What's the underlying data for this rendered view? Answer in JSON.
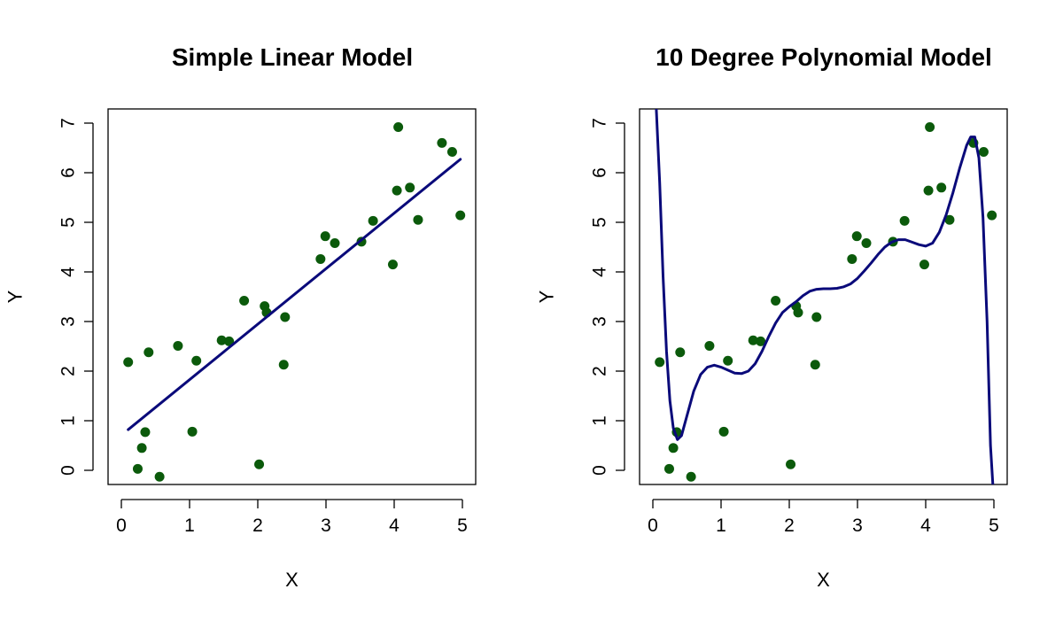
{
  "chart_data": [
    {
      "type": "scatter",
      "title": "Simple Linear Model",
      "xlabel": "X",
      "ylabel": "Y",
      "xlim": [
        0,
        5
      ],
      "ylim": [
        0,
        7
      ],
      "xticks": [
        0,
        1,
        2,
        3,
        4,
        5
      ],
      "yticks": [
        0,
        1,
        2,
        3,
        4,
        5,
        6,
        7
      ],
      "grid": false,
      "point_color": "#0b5a0b",
      "line_color": "#0a0a7a",
      "points": [
        {
          "x": 0.1,
          "y": 2.18
        },
        {
          "x": 0.24,
          "y": 0.03
        },
        {
          "x": 0.3,
          "y": 0.45
        },
        {
          "x": 0.35,
          "y": 0.77
        },
        {
          "x": 0.4,
          "y": 2.38
        },
        {
          "x": 0.56,
          "y": -0.13
        },
        {
          "x": 0.83,
          "y": 2.51
        },
        {
          "x": 1.04,
          "y": 0.78
        },
        {
          "x": 1.1,
          "y": 2.21
        },
        {
          "x": 1.47,
          "y": 2.62
        },
        {
          "x": 1.58,
          "y": 2.6
        },
        {
          "x": 1.8,
          "y": 3.42
        },
        {
          "x": 2.02,
          "y": 0.12
        },
        {
          "x": 2.1,
          "y": 3.31
        },
        {
          "x": 2.13,
          "y": 3.18
        },
        {
          "x": 2.38,
          "y": 2.13
        },
        {
          "x": 2.4,
          "y": 3.09
        },
        {
          "x": 2.92,
          "y": 4.26
        },
        {
          "x": 2.99,
          "y": 4.72
        },
        {
          "x": 3.13,
          "y": 4.58
        },
        {
          "x": 3.52,
          "y": 4.61
        },
        {
          "x": 3.69,
          "y": 5.03
        },
        {
          "x": 3.98,
          "y": 4.15
        },
        {
          "x": 4.04,
          "y": 5.64
        },
        {
          "x": 4.06,
          "y": 6.92
        },
        {
          "x": 4.23,
          "y": 5.7
        },
        {
          "x": 4.35,
          "y": 5.05
        },
        {
          "x": 4.7,
          "y": 6.6
        },
        {
          "x": 4.85,
          "y": 6.42
        },
        {
          "x": 4.97,
          "y": 5.14
        }
      ],
      "fit_line": [
        {
          "x": 0.1,
          "y": 0.82
        },
        {
          "x": 4.97,
          "y": 6.27
        }
      ]
    },
    {
      "type": "scatter",
      "title": "10 Degree Polynomial Model",
      "xlabel": "X",
      "ylabel": "Y",
      "xlim": [
        0,
        5
      ],
      "ylim": [
        0,
        7
      ],
      "xticks": [
        0,
        1,
        2,
        3,
        4,
        5
      ],
      "yticks": [
        0,
        1,
        2,
        3,
        4,
        5,
        6,
        7
      ],
      "grid": false,
      "point_color": "#0b5a0b",
      "line_color": "#0a0a7a",
      "points": [
        {
          "x": 0.1,
          "y": 2.18
        },
        {
          "x": 0.24,
          "y": 0.03
        },
        {
          "x": 0.3,
          "y": 0.45
        },
        {
          "x": 0.35,
          "y": 0.77
        },
        {
          "x": 0.4,
          "y": 2.38
        },
        {
          "x": 0.56,
          "y": -0.13
        },
        {
          "x": 0.83,
          "y": 2.51
        },
        {
          "x": 1.04,
          "y": 0.78
        },
        {
          "x": 1.1,
          "y": 2.21
        },
        {
          "x": 1.47,
          "y": 2.62
        },
        {
          "x": 1.58,
          "y": 2.6
        },
        {
          "x": 1.8,
          "y": 3.42
        },
        {
          "x": 2.02,
          "y": 0.12
        },
        {
          "x": 2.1,
          "y": 3.31
        },
        {
          "x": 2.13,
          "y": 3.18
        },
        {
          "x": 2.38,
          "y": 2.13
        },
        {
          "x": 2.4,
          "y": 3.09
        },
        {
          "x": 2.92,
          "y": 4.26
        },
        {
          "x": 2.99,
          "y": 4.72
        },
        {
          "x": 3.13,
          "y": 4.58
        },
        {
          "x": 3.52,
          "y": 4.61
        },
        {
          "x": 3.69,
          "y": 5.03
        },
        {
          "x": 3.98,
          "y": 4.15
        },
        {
          "x": 4.04,
          "y": 5.64
        },
        {
          "x": 4.06,
          "y": 6.92
        },
        {
          "x": 4.23,
          "y": 5.7
        },
        {
          "x": 4.35,
          "y": 5.05
        },
        {
          "x": 4.7,
          "y": 6.6
        },
        {
          "x": 4.85,
          "y": 6.42
        },
        {
          "x": 4.97,
          "y": 5.14
        }
      ],
      "fit_curve": [
        {
          "x": 0.05,
          "y": 7.3
        },
        {
          "x": 0.1,
          "y": 5.8
        },
        {
          "x": 0.15,
          "y": 3.9
        },
        {
          "x": 0.2,
          "y": 2.4
        },
        {
          "x": 0.25,
          "y": 1.4
        },
        {
          "x": 0.3,
          "y": 0.85
        },
        {
          "x": 0.36,
          "y": 0.62
        },
        {
          "x": 0.42,
          "y": 0.7
        },
        {
          "x": 0.5,
          "y": 1.1
        },
        {
          "x": 0.6,
          "y": 1.6
        },
        {
          "x": 0.7,
          "y": 1.93
        },
        {
          "x": 0.8,
          "y": 2.08
        },
        {
          "x": 0.9,
          "y": 2.12
        },
        {
          "x": 1.0,
          "y": 2.08
        },
        {
          "x": 1.1,
          "y": 2.02
        },
        {
          "x": 1.2,
          "y": 1.96
        },
        {
          "x": 1.3,
          "y": 1.95
        },
        {
          "x": 1.4,
          "y": 2.0
        },
        {
          "x": 1.5,
          "y": 2.15
        },
        {
          "x": 1.6,
          "y": 2.4
        },
        {
          "x": 1.7,
          "y": 2.7
        },
        {
          "x": 1.8,
          "y": 2.97
        },
        {
          "x": 1.9,
          "y": 3.18
        },
        {
          "x": 2.0,
          "y": 3.3
        },
        {
          "x": 2.1,
          "y": 3.4
        },
        {
          "x": 2.2,
          "y": 3.52
        },
        {
          "x": 2.3,
          "y": 3.61
        },
        {
          "x": 2.4,
          "y": 3.65
        },
        {
          "x": 2.5,
          "y": 3.66
        },
        {
          "x": 2.6,
          "y": 3.66
        },
        {
          "x": 2.7,
          "y": 3.67
        },
        {
          "x": 2.8,
          "y": 3.7
        },
        {
          "x": 2.9,
          "y": 3.76
        },
        {
          "x": 3.0,
          "y": 3.87
        },
        {
          "x": 3.1,
          "y": 4.02
        },
        {
          "x": 3.2,
          "y": 4.18
        },
        {
          "x": 3.3,
          "y": 4.35
        },
        {
          "x": 3.4,
          "y": 4.5
        },
        {
          "x": 3.5,
          "y": 4.6
        },
        {
          "x": 3.6,
          "y": 4.65
        },
        {
          "x": 3.7,
          "y": 4.65
        },
        {
          "x": 3.8,
          "y": 4.6
        },
        {
          "x": 3.9,
          "y": 4.55
        },
        {
          "x": 4.0,
          "y": 4.52
        },
        {
          "x": 4.1,
          "y": 4.58
        },
        {
          "x": 4.2,
          "y": 4.8
        },
        {
          "x": 4.3,
          "y": 5.15
        },
        {
          "x": 4.4,
          "y": 5.6
        },
        {
          "x": 4.5,
          "y": 6.1
        },
        {
          "x": 4.6,
          "y": 6.55
        },
        {
          "x": 4.66,
          "y": 6.72
        },
        {
          "x": 4.72,
          "y": 6.72
        },
        {
          "x": 4.78,
          "y": 6.3
        },
        {
          "x": 4.84,
          "y": 5.1
        },
        {
          "x": 4.9,
          "y": 3.0
        },
        {
          "x": 4.95,
          "y": 0.5
        },
        {
          "x": 4.985,
          "y": -0.3
        }
      ]
    }
  ]
}
